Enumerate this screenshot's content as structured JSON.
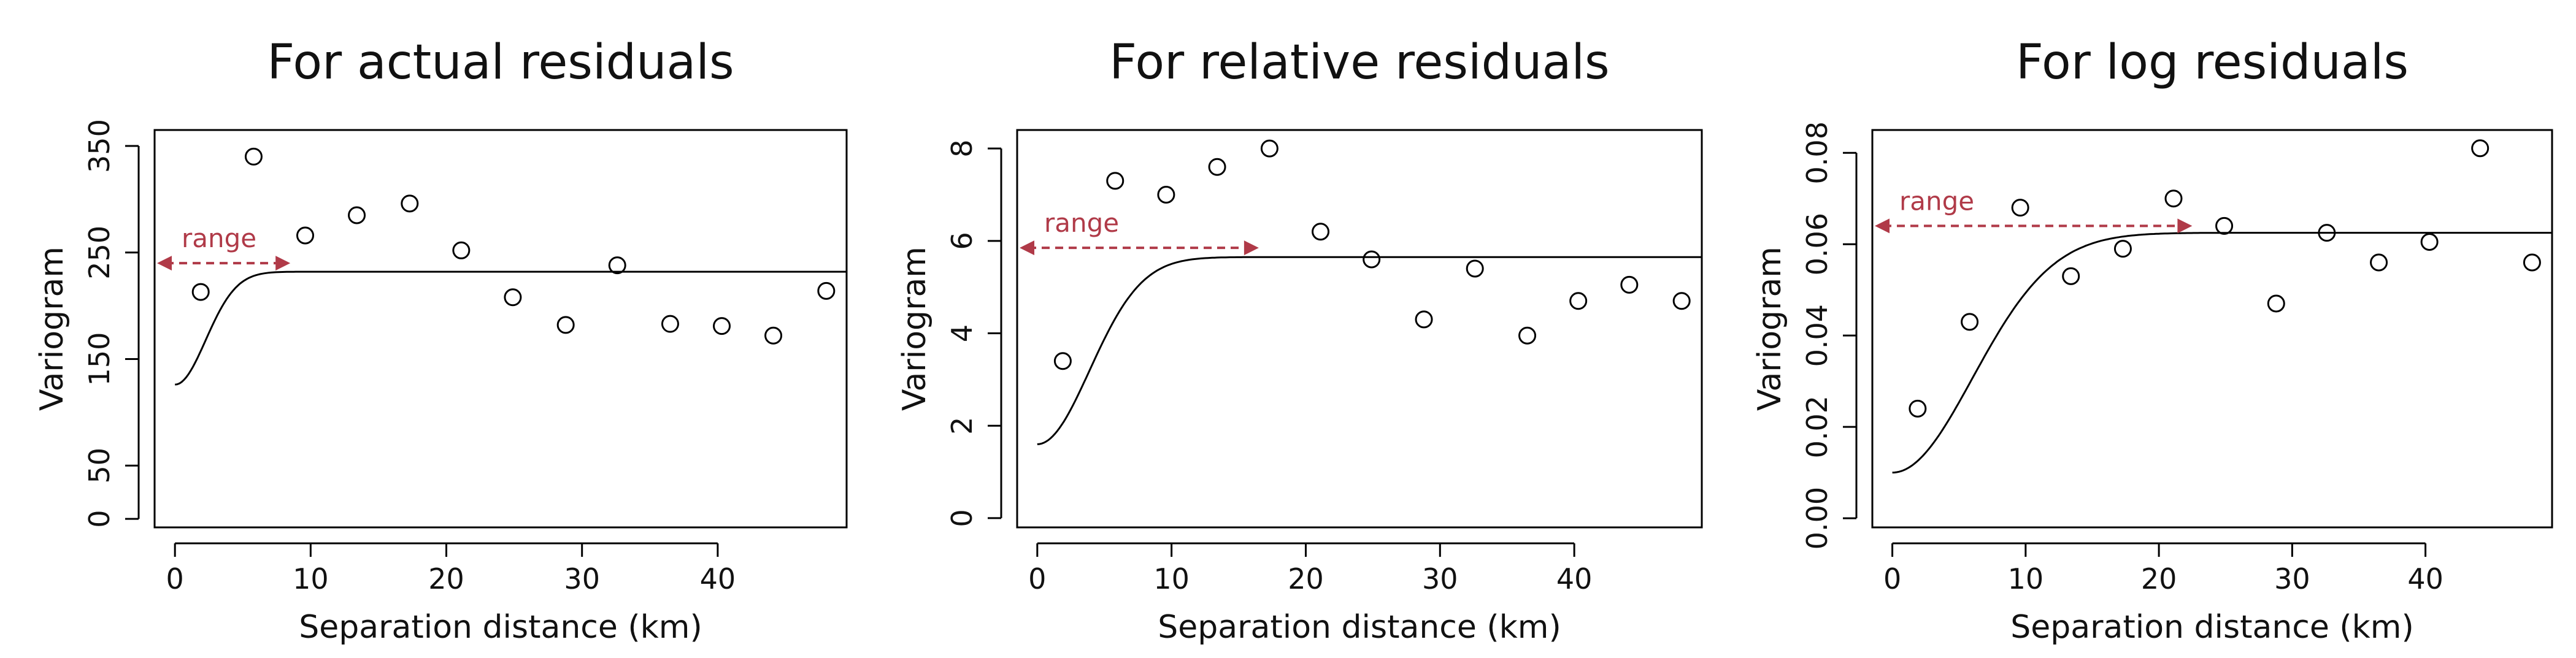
{
  "chart_data": [
    {
      "type": "scatter",
      "title": "For actual residuals",
      "xlabel": "Separation distance (km)",
      "ylabel": "Variogram",
      "xlim": [
        -1.5,
        49.5
      ],
      "ylim": [
        -8,
        365
      ],
      "xticks": [
        0,
        10,
        20,
        30,
        40
      ],
      "yticks": [
        0,
        50,
        150,
        250,
        350
      ],
      "grid": false,
      "annotation": {
        "text": "range",
        "from_x": -1.5,
        "to_x": 8.5,
        "y": 240,
        "color": "#b03a48"
      },
      "series": [
        {
          "kind": "points",
          "x": [
            1.9,
            5.8,
            9.6,
            13.4,
            17.3,
            21.1,
            24.9,
            28.8,
            32.6,
            36.5,
            40.3,
            44.1,
            48.0
          ],
          "y": [
            213,
            340,
            266,
            285,
            296,
            252,
            208,
            182,
            238,
            183,
            181,
            172,
            214
          ]
        },
        {
          "kind": "model-curve",
          "model": "gaussian",
          "nugget": 126,
          "sill": 232,
          "range": 3.2,
          "x_from": 0,
          "x_to": 49.5
        }
      ]
    },
    {
      "type": "scatter",
      "title": "For relative residuals",
      "xlabel": "Separation distance (km)",
      "ylabel": "Variogram",
      "xlim": [
        -1.5,
        49.5
      ],
      "ylim": [
        -0.2,
        8.4
      ],
      "xticks": [
        0,
        10,
        20,
        30,
        40
      ],
      "yticks": [
        0,
        2,
        4,
        6,
        8
      ],
      "grid": false,
      "annotation": {
        "text": "range",
        "from_x": -1.5,
        "to_x": 16.5,
        "y": 5.85,
        "color": "#b03a48"
      },
      "series": [
        {
          "kind": "points",
          "x": [
            1.9,
            5.8,
            9.6,
            13.4,
            17.3,
            21.1,
            24.9,
            28.8,
            32.6,
            36.5,
            40.3,
            44.1,
            48.0
          ],
          "y": [
            3.4,
            7.3,
            7.0,
            7.6,
            8.0,
            6.2,
            5.6,
            4.3,
            5.4,
            3.95,
            4.7,
            5.05,
            4.7
          ]
        },
        {
          "kind": "model-curve",
          "model": "gaussian",
          "nugget": 1.6,
          "sill": 5.65,
          "range": 5.5,
          "x_from": 0,
          "x_to": 49.5
        }
      ]
    },
    {
      "type": "scatter",
      "title": "For log residuals",
      "xlabel": "Separation distance (km)",
      "ylabel": "Variogram",
      "xlim": [
        -1.5,
        49.5
      ],
      "ylim": [
        -0.002,
        0.085
      ],
      "xticks": [
        0,
        10,
        20,
        30,
        40
      ],
      "yticks": [
        0.0,
        0.02,
        0.04,
        0.06,
        0.08
      ],
      "ytick_labels": [
        "0.00",
        "0.02",
        "0.04",
        "0.06",
        "0.08"
      ],
      "grid": false,
      "annotation": {
        "text": "range",
        "from_x": -1.5,
        "to_x": 22.5,
        "y": 0.064,
        "color": "#b03a48"
      },
      "series": [
        {
          "kind": "points",
          "x": [
            1.9,
            5.8,
            9.6,
            13.4,
            17.3,
            21.1,
            24.9,
            28.8,
            32.6,
            36.5,
            40.3,
            44.1,
            48.0
          ],
          "y": [
            0.024,
            0.043,
            0.068,
            0.053,
            0.059,
            0.07,
            0.064,
            0.047,
            0.0625,
            0.056,
            0.0605,
            0.081,
            0.056
          ]
        },
        {
          "kind": "model-curve",
          "model": "gaussian",
          "nugget": 0.01,
          "sill": 0.0625,
          "range": 8.5,
          "x_from": 0,
          "x_to": 49.5
        }
      ]
    }
  ]
}
